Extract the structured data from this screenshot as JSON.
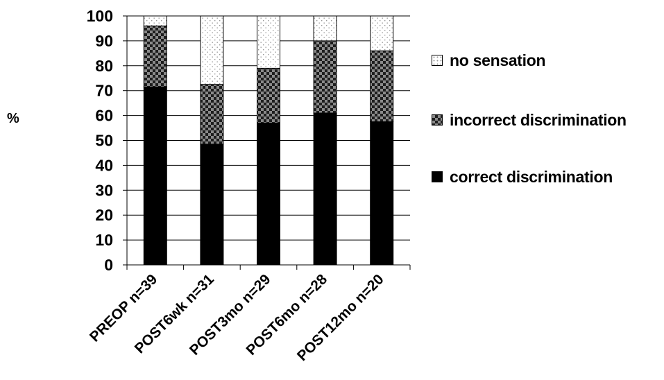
{
  "chart_data": {
    "type": "bar",
    "stacked": true,
    "ylabel": "%",
    "ylim": [
      0,
      100
    ],
    "yticks": [
      0,
      10,
      20,
      30,
      40,
      50,
      60,
      70,
      80,
      90,
      100
    ],
    "grid": "horizontal",
    "legend_position": "right",
    "categories": [
      "PREOP n=39",
      "POST6wk n=31",
      "POST3mo n=29",
      "POST6mo n=28",
      "POST12mo n=20"
    ],
    "series": [
      {
        "name": "correct discrimination",
        "values": [
          71.5,
          48.5,
          57,
          61,
          57.5
        ],
        "color": "#000000",
        "pattern": "solid"
      },
      {
        "name": "incorrect discrimination",
        "values": [
          24.5,
          24,
          22,
          29,
          28.5
        ],
        "color": "#555555",
        "pattern": "checker"
      },
      {
        "name": "no sensation",
        "values": [
          4,
          27.5,
          21,
          10,
          14
        ],
        "color": "#ffffff",
        "pattern": "dots"
      }
    ]
  }
}
